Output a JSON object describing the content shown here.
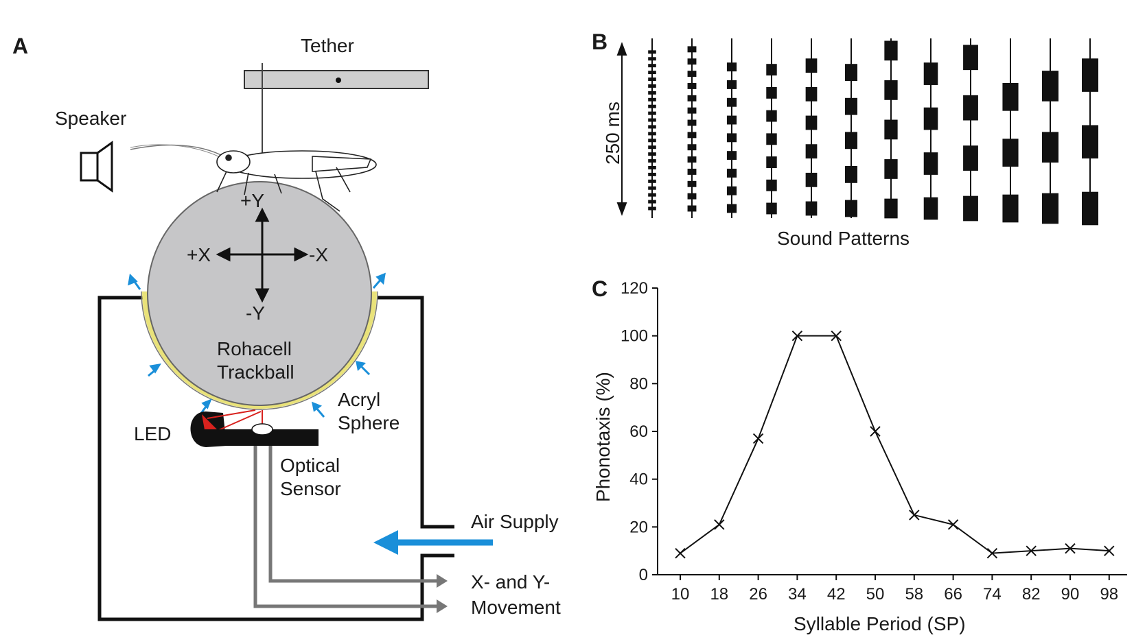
{
  "panel_a": {
    "letter": "A",
    "tether": "Tether",
    "speaker": "Speaker",
    "axis_plus_y": "+Y",
    "axis_minus_y": "-Y",
    "axis_plus_x": "+X",
    "axis_minus_x": "-X",
    "trackball_line1": "Rohacell",
    "trackball_line2": "Trackball",
    "acryl_line1": "Acryl",
    "acryl_line2": "Sphere",
    "led": "LED",
    "optical_line1": "Optical",
    "optical_line2": "Sensor",
    "air_supply": "Air Supply",
    "movement_line1": "X- and Y-",
    "movement_line2": "Movement",
    "colors": {
      "trackball": "#c6c6c8",
      "air_arrow": "#1a8fd9",
      "led": "#d8221e",
      "acryl": "#e9e27a"
    }
  },
  "panel_b": {
    "letter": "B",
    "duration": "250 ms",
    "caption": "Sound Patterns",
    "syllable_periods": [
      10,
      18,
      26,
      34,
      42,
      50,
      58,
      66,
      74,
      82,
      90,
      98
    ],
    "pulse_count_shown": [
      24,
      14,
      9,
      7,
      6,
      5,
      5,
      4,
      4,
      3,
      3,
      3
    ],
    "total_ms": 250
  },
  "panel_c": {
    "letter": "C",
    "chart_data": {
      "type": "line",
      "xlabel": "Syllable Period (SP)",
      "ylabel": "Phonotaxis (%)",
      "categories": [
        "10",
        "18",
        "26",
        "34",
        "42",
        "50",
        "58",
        "66",
        "74",
        "82",
        "90",
        "98"
      ],
      "values": [
        9,
        21,
        57,
        100,
        100,
        60,
        25,
        21,
        9,
        10,
        11,
        10
      ],
      "ylim": [
        0,
        120
      ],
      "yticks": [
        "0",
        "20",
        "40",
        "60",
        "80",
        "100",
        "120"
      ],
      "marker": "x",
      "grid": false,
      "legend": "none"
    }
  }
}
